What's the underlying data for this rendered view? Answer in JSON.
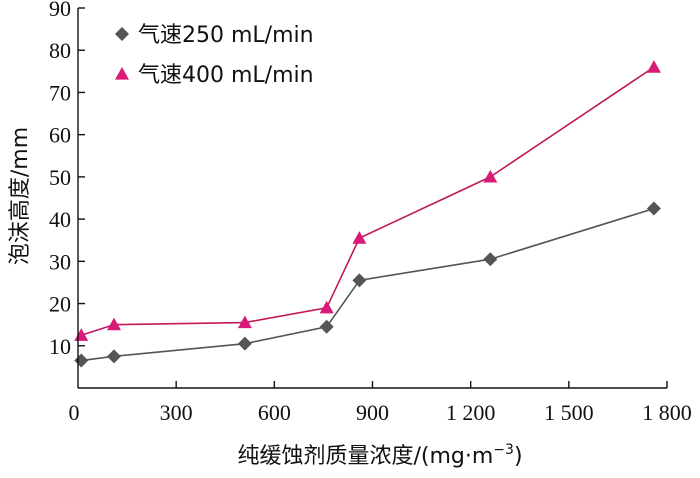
{
  "chart_data": {
    "type": "line",
    "title": "",
    "xlabel": "纯缓蚀剂质量浓度/(mg·m",
    "xlabel_sup": "−3",
    "xlabel_close": ")",
    "ylabel": "泡沫高度/mm",
    "xlim": [
      0,
      1800
    ],
    "ylim": [
      0,
      90
    ],
    "x_ticks": [
      0,
      300,
      600,
      900,
      1200,
      1500,
      1800
    ],
    "x_tick_labels": [
      "0",
      "300",
      "600",
      "900",
      "1 200",
      "1 500",
      "1 800"
    ],
    "y_ticks": [
      10,
      20,
      30,
      40,
      50,
      60,
      70,
      80,
      90
    ],
    "y_tick_labels": [
      "10",
      "20",
      "30",
      "40",
      "50",
      "60",
      "70",
      "80",
      "90"
    ],
    "legend_position": "top-left",
    "grid": false,
    "series": [
      {
        "name": "气速250 mL/min",
        "marker": "diamond",
        "color": "#555555",
        "line_color": "#555555",
        "x": [
          10,
          110,
          510,
          760,
          860,
          1260,
          1760
        ],
        "y": [
          6.5,
          7.5,
          10.5,
          14.5,
          25.5,
          30.5,
          42.5
        ]
      },
      {
        "name": "气速400 mL/min",
        "marker": "triangle",
        "color": "#d81b77",
        "line_color": "#c2185b",
        "x": [
          10,
          110,
          510,
          760,
          860,
          1260,
          1760
        ],
        "y": [
          12.5,
          15,
          15.5,
          19,
          35.5,
          50,
          76
        ]
      }
    ]
  }
}
